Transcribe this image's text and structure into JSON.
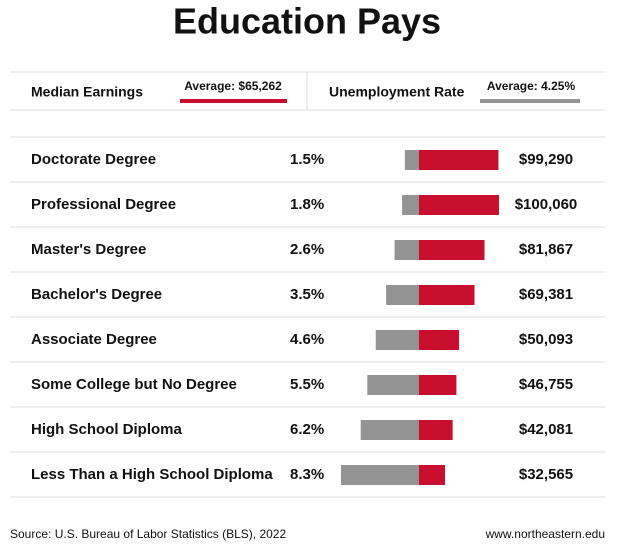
{
  "chart_data": {
    "type": "diverging-bar",
    "title": "Education Pays",
    "categories": [
      "Doctorate Degree",
      "Professional Degree",
      "Master's Degree",
      "Bachelor's Degree",
      "Associate Degree",
      "Some College but No Degree",
      "High School Diploma",
      "Less Than a High School Diploma"
    ],
    "series": [
      {
        "name": "Unemployment Rate",
        "color": "#939393",
        "average_label": "Average: 4.25%",
        "values": [
          1.5,
          1.8,
          2.6,
          3.5,
          4.6,
          5.5,
          6.2,
          8.3
        ],
        "value_labels": [
          "1.5%",
          "1.8%",
          "2.6%",
          "3.5%",
          "4.6%",
          "5.5%",
          "6.2%",
          "8.3%"
        ]
      },
      {
        "name": "Median Earnings",
        "color": "#c8102e",
        "average_label": "Average: $65,262",
        "values": [
          99290,
          100060,
          81867,
          69381,
          50093,
          46755,
          42081,
          32565
        ],
        "value_labels": [
          "$99,290",
          "$100,060",
          "$81,867",
          "$69,381",
          "$50,093",
          "$46,755",
          "$42,081",
          "$32,565"
        ]
      }
    ],
    "source": "Source: U.S. Bureau of Labor Statistics (BLS), 2022",
    "website": "www.northeastern.edu"
  }
}
